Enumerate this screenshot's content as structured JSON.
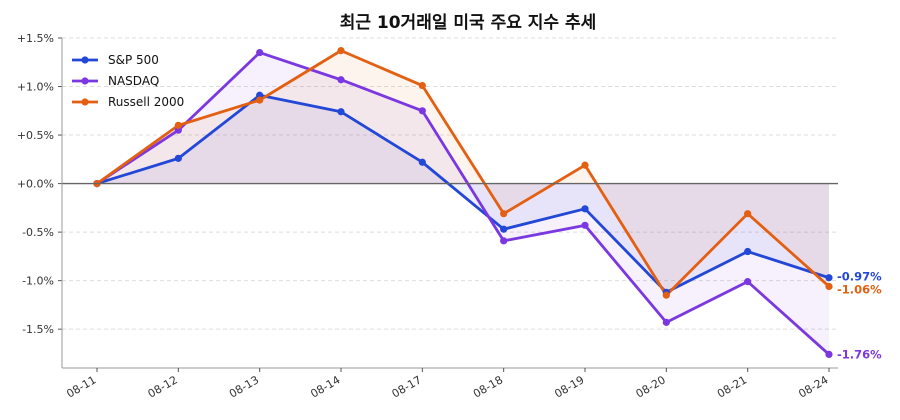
{
  "chart_data": {
    "type": "line",
    "title": "최근 10거래일 미국 주요 지수 추세",
    "xlabel": "",
    "ylabel": "",
    "categories": [
      "08-11",
      "08-12",
      "08-13",
      "08-14",
      "08-17",
      "08-18",
      "08-19",
      "08-20",
      "08-21",
      "08-24"
    ],
    "y_ticks": [
      "+1.5%",
      "+1.0%",
      "+0.5%",
      "+0.0%",
      "-0.5%",
      "-1.0%",
      "-1.5%"
    ],
    "ylim": [
      -1.9,
      1.5
    ],
    "grid": true,
    "legend_position": "top-left",
    "series": [
      {
        "name": "S&P 500",
        "color": "#2347d6",
        "values": [
          0.0,
          0.26,
          0.91,
          0.74,
          0.22,
          -0.47,
          -0.26,
          -1.12,
          -0.7,
          -0.97
        ],
        "end_label": "-0.97%"
      },
      {
        "name": "NASDAQ",
        "color": "#7b38e0",
        "values": [
          0.0,
          0.55,
          1.35,
          1.07,
          0.75,
          -0.59,
          -0.43,
          -1.43,
          -1.01,
          -1.76
        ],
        "end_label": "-1.76%"
      },
      {
        "name": "Russell 2000",
        "color": "#e35f12",
        "values": [
          0.0,
          0.6,
          0.86,
          1.37,
          1.01,
          -0.31,
          0.19,
          -1.15,
          -0.31,
          -1.06
        ],
        "end_label": "-1.06%"
      }
    ]
  }
}
